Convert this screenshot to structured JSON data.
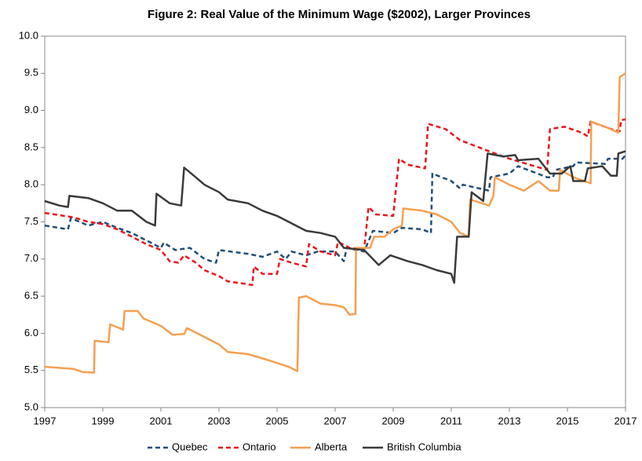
{
  "chart_data": {
    "type": "line",
    "title": "Figure 2: Real Value of the Minimum Wage ($2002), Larger Provinces",
    "xlim": [
      1997,
      2017
    ],
    "xticks": [
      1997,
      1999,
      2001,
      2003,
      2005,
      2007,
      2009,
      2011,
      2013,
      2015,
      2017
    ],
    "ylim": [
      5,
      10
    ],
    "yticks": [
      {
        "value": 5,
        "label": "5.0"
      },
      {
        "value": 5.5,
        "label": "5.5"
      },
      {
        "value": 6,
        "label": "6.0"
      },
      {
        "value": 6.5,
        "label": "6.5"
      },
      {
        "value": 7,
        "label": "7.0"
      },
      {
        "value": 7.5,
        "label": "7.5"
      },
      {
        "value": 8,
        "label": "8.0"
      },
      {
        "value": 8.5,
        "label": "8.5"
      },
      {
        "value": 9,
        "label": "9.0"
      },
      {
        "value": 9.5,
        "label": "9.5"
      },
      {
        "value": 10,
        "label": "10.0"
      }
    ],
    "grid": false,
    "legend": "bottom",
    "series": [
      {
        "name": "Quebec",
        "color": "#1f4e79",
        "dash": true,
        "x": [
          1997,
          1997.8,
          1997.9,
          1998.5,
          1999,
          1999.5,
          2000,
          2000.5,
          2001,
          2001.1,
          2001.5,
          2002,
          2002.5,
          2002.9,
          2003,
          2004,
          2004.5,
          2005,
          2005.3,
          2005.5,
          2006,
          2006.4,
          2007,
          2007.3,
          2007.4,
          2008,
          2008.3,
          2009,
          2009.3,
          2010,
          2010.3,
          2010.35,
          2011,
          2011.3,
          2011.4,
          2012.3,
          2012.35,
          2013,
          2013.3,
          2014.3,
          2014.5,
          2014.6,
          2015.2,
          2015.3,
          2016.3,
          2016.4,
          2016.9,
          2017
        ],
        "values": [
          7.45,
          7.4,
          7.55,
          7.45,
          7.5,
          7.42,
          7.35,
          7.25,
          7.15,
          7.22,
          7.12,
          7.15,
          7.0,
          6.95,
          7.12,
          7.07,
          7.03,
          7.1,
          7.0,
          7.1,
          7.05,
          7.1,
          7.1,
          6.97,
          7.15,
          7.1,
          7.38,
          7.35,
          7.42,
          7.4,
          7.35,
          8.15,
          8.05,
          7.95,
          8.0,
          7.92,
          8.1,
          8.15,
          8.25,
          8.1,
          8.1,
          8.2,
          8.25,
          8.3,
          8.28,
          8.35,
          8.35,
          8.4
        ]
      },
      {
        "name": "Ontario",
        "color": "#e8141b",
        "dash": true,
        "x": [
          1997,
          1998,
          1998.5,
          1999,
          1999.5,
          2000,
          2000.5,
          2001,
          2001.3,
          2001.6,
          2001.8,
          2002.2,
          2002.5,
          2003,
          2003.3,
          2004,
          2004.15,
          2004.2,
          2004.5,
          2005,
          2005.1,
          2005.5,
          2006,
          2006.1,
          2006.5,
          2007,
          2007.1,
          2007.5,
          2008,
          2008.15,
          2008.4,
          2009,
          2009.2,
          2009.5,
          2010.1,
          2010.2,
          2010.8,
          2011.3,
          2012.3,
          2013,
          2014.3,
          2014.4,
          2014.9,
          2015.5,
          2015.7,
          2015.8,
          2016.5,
          2016.8,
          2016.85,
          2017
        ],
        "values": [
          7.62,
          7.56,
          7.5,
          7.47,
          7.4,
          7.3,
          7.2,
          7.12,
          6.97,
          6.95,
          7.05,
          6.95,
          6.85,
          6.77,
          6.7,
          6.66,
          6.65,
          6.9,
          6.8,
          6.8,
          7.0,
          6.95,
          6.9,
          7.2,
          7.1,
          7.05,
          7.23,
          7.15,
          7.13,
          7.7,
          7.6,
          7.58,
          8.35,
          8.27,
          8.22,
          8.82,
          8.75,
          8.6,
          8.45,
          8.35,
          8.2,
          8.75,
          8.78,
          8.7,
          8.65,
          8.85,
          8.75,
          8.72,
          8.87,
          8.88
        ]
      },
      {
        "name": "Alberta",
        "color": "#f4a050",
        "dash": false,
        "x": [
          1997,
          1998,
          1998.3,
          1998.7,
          1998.72,
          1999.2,
          1999.25,
          1999.7,
          1999.75,
          2000.2,
          2000.4,
          2001,
          2001.4,
          2001.8,
          2001.9,
          2002.5,
          2003,
          2003.3,
          2004,
          2004.6,
          2005,
          2005.4,
          2005.7,
          2005.75,
          2006,
          2006.5,
          2007,
          2007.3,
          2007.5,
          2007.7,
          2007.72,
          2008.2,
          2008.35,
          2008.7,
          2009,
          2009.3,
          2009.35,
          2010,
          2010.5,
          2011,
          2011.3,
          2011.6,
          2011.65,
          2012.3,
          2012.45,
          2012.5,
          2013,
          2013.5,
          2014,
          2014.4,
          2014.7,
          2014.75,
          2015.2,
          2015.8,
          2015.82,
          2016.3,
          2016.75,
          2016.8,
          2017
        ],
        "values": [
          5.55,
          5.52,
          5.48,
          5.47,
          5.9,
          5.88,
          6.12,
          6.05,
          6.3,
          6.3,
          6.2,
          6.1,
          5.98,
          5.99,
          6.07,
          5.95,
          5.85,
          5.75,
          5.72,
          5.65,
          5.6,
          5.55,
          5.49,
          6.48,
          6.5,
          6.4,
          6.38,
          6.35,
          6.25,
          6.26,
          7.15,
          7.15,
          7.3,
          7.3,
          7.4,
          7.45,
          7.68,
          7.65,
          7.6,
          7.5,
          7.35,
          7.3,
          7.8,
          7.72,
          7.85,
          8.1,
          8.0,
          7.92,
          8.05,
          7.92,
          7.92,
          8.2,
          8.1,
          8.02,
          8.85,
          8.78,
          8.7,
          9.45,
          9.5
        ]
      },
      {
        "name": "British Columbia",
        "color": "#3a3a3a",
        "dash": false,
        "x": [
          1997,
          1997.5,
          1997.8,
          1997.85,
          1998.5,
          1999,
          1999.5,
          2000,
          2000.5,
          2000.8,
          2000.85,
          2001.3,
          2001.7,
          2001.8,
          2002.2,
          2002.5,
          2003,
          2003.3,
          2004,
          2004.5,
          2005,
          2005.5,
          2006,
          2006.5,
          2007,
          2007.3,
          2008,
          2008.5,
          2008.9,
          2009.5,
          2010,
          2010.5,
          2011,
          2011.1,
          2011.2,
          2011.6,
          2011.7,
          2012.1,
          2012.25,
          2012.8,
          2013.2,
          2013.3,
          2014,
          2014.4,
          2014.8,
          2015.1,
          2015.2,
          2015.6,
          2015.7,
          2016.2,
          2016.5,
          2016.7,
          2016.75,
          2017
        ],
        "values": [
          7.78,
          7.72,
          7.7,
          7.85,
          7.82,
          7.75,
          7.65,
          7.65,
          7.5,
          7.45,
          7.88,
          7.75,
          7.72,
          8.23,
          8.1,
          8.0,
          7.9,
          7.8,
          7.75,
          7.65,
          7.58,
          7.48,
          7.38,
          7.35,
          7.3,
          7.15,
          7.12,
          6.92,
          7.05,
          6.97,
          6.92,
          6.85,
          6.8,
          6.68,
          7.3,
          7.3,
          7.9,
          7.78,
          8.42,
          8.38,
          8.4,
          8.33,
          8.35,
          8.15,
          8.15,
          8.25,
          8.05,
          8.05,
          8.22,
          8.25,
          8.12,
          8.12,
          8.42,
          8.45
        ]
      }
    ]
  }
}
